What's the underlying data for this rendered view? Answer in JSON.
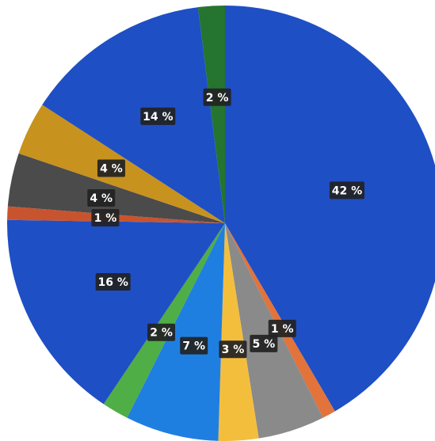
{
  "chart_data": {
    "type": "pie",
    "title": "",
    "slices": [
      {
        "label": "42 %",
        "value": 42,
        "color": "#1f4fc4"
      },
      {
        "label": "1 %",
        "value": 1,
        "color": "#e2733a"
      },
      {
        "label": "5 %",
        "value": 5,
        "color": "#8a8a8a"
      },
      {
        "label": "3 %",
        "value": 3,
        "color": "#f4be3d"
      },
      {
        "label": "7 %",
        "value": 7,
        "color": "#1f7fe0"
      },
      {
        "label": "2 %",
        "value": 2,
        "color": "#4fae46"
      },
      {
        "label": "16 %",
        "value": 16,
        "color": "#1f4fc4"
      },
      {
        "label": "1 %",
        "value": 1,
        "color": "#c8542f"
      },
      {
        "label": "4 %",
        "value": 4,
        "color": "#4b4b4b"
      },
      {
        "label": "4 %",
        "value": 4,
        "color": "#c8921e"
      },
      {
        "label": "14 %",
        "value": 14,
        "color": "#1f4fc4"
      },
      {
        "label": "2 %",
        "value": 2,
        "color": "#25742f"
      }
    ]
  }
}
